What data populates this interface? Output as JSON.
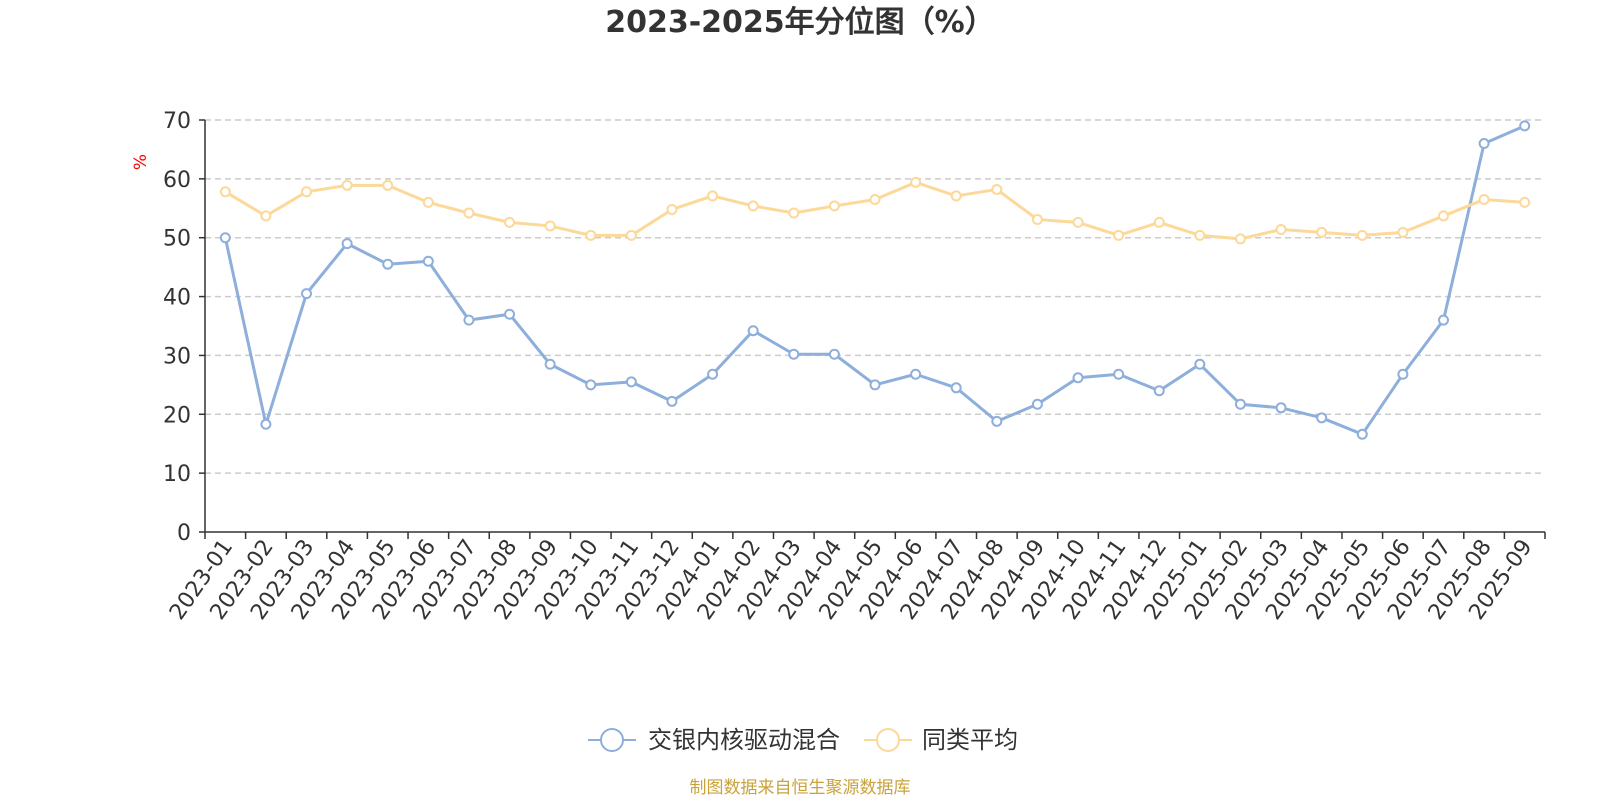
{
  "chart_data": {
    "type": "line",
    "title": "2023-2025年分位图（%）",
    "ylabel": "%",
    "ylim": [
      0,
      70
    ],
    "yticks": [
      "0",
      "10",
      "20",
      "30",
      "40",
      "50",
      "60",
      "70"
    ],
    "grid": true,
    "legend_position": "bottom",
    "categories": [
      "2023-01",
      "2023-02",
      "2023-03",
      "2023-04",
      "2023-05",
      "2023-06",
      "2023-07",
      "2023-08",
      "2023-09",
      "2023-10",
      "2023-11",
      "2023-12",
      "2024-01",
      "2024-02",
      "2024-03",
      "2024-04",
      "2024-05",
      "2024-06",
      "2024-07",
      "2024-08",
      "2024-09",
      "2024-10",
      "2024-11",
      "2024-12",
      "2025-01",
      "2025-02",
      "2025-03",
      "2025-04",
      "2025-05",
      "2025-06",
      "2025-07",
      "2025-08",
      "2025-09"
    ],
    "series": [
      {
        "name": "交银内核驱动混合",
        "color": "#8eaedb",
        "values": [
          50.0,
          18.3,
          40.5,
          49.0,
          45.5,
          46.0,
          36.0,
          37.0,
          28.5,
          25.0,
          25.5,
          22.2,
          26.8,
          34.2,
          30.2,
          30.2,
          25.0,
          26.8,
          24.5,
          18.8,
          21.7,
          26.2,
          26.8,
          24.0,
          28.5,
          21.7,
          21.1,
          19.4,
          16.6,
          26.8,
          36.0,
          66.0,
          69.0
        ]
      },
      {
        "name": "同类平均",
        "color": "#fcd899",
        "values": [
          57.8,
          53.7,
          57.8,
          58.9,
          58.9,
          56.0,
          54.2,
          52.6,
          52.0,
          50.4,
          50.4,
          54.8,
          57.1,
          55.4,
          54.2,
          55.4,
          56.5,
          59.4,
          57.1,
          58.2,
          53.1,
          52.6,
          50.4,
          52.6,
          50.4,
          49.8,
          51.4,
          50.9,
          50.4,
          50.9,
          53.7,
          56.5,
          56.0
        ]
      }
    ],
    "source": "制图数据来自恒生聚源数据库",
    "colors": {
      "axis": "#333333",
      "grid": "#cccccc",
      "unit": "#ff0000",
      "source": "#c9a23a"
    }
  }
}
